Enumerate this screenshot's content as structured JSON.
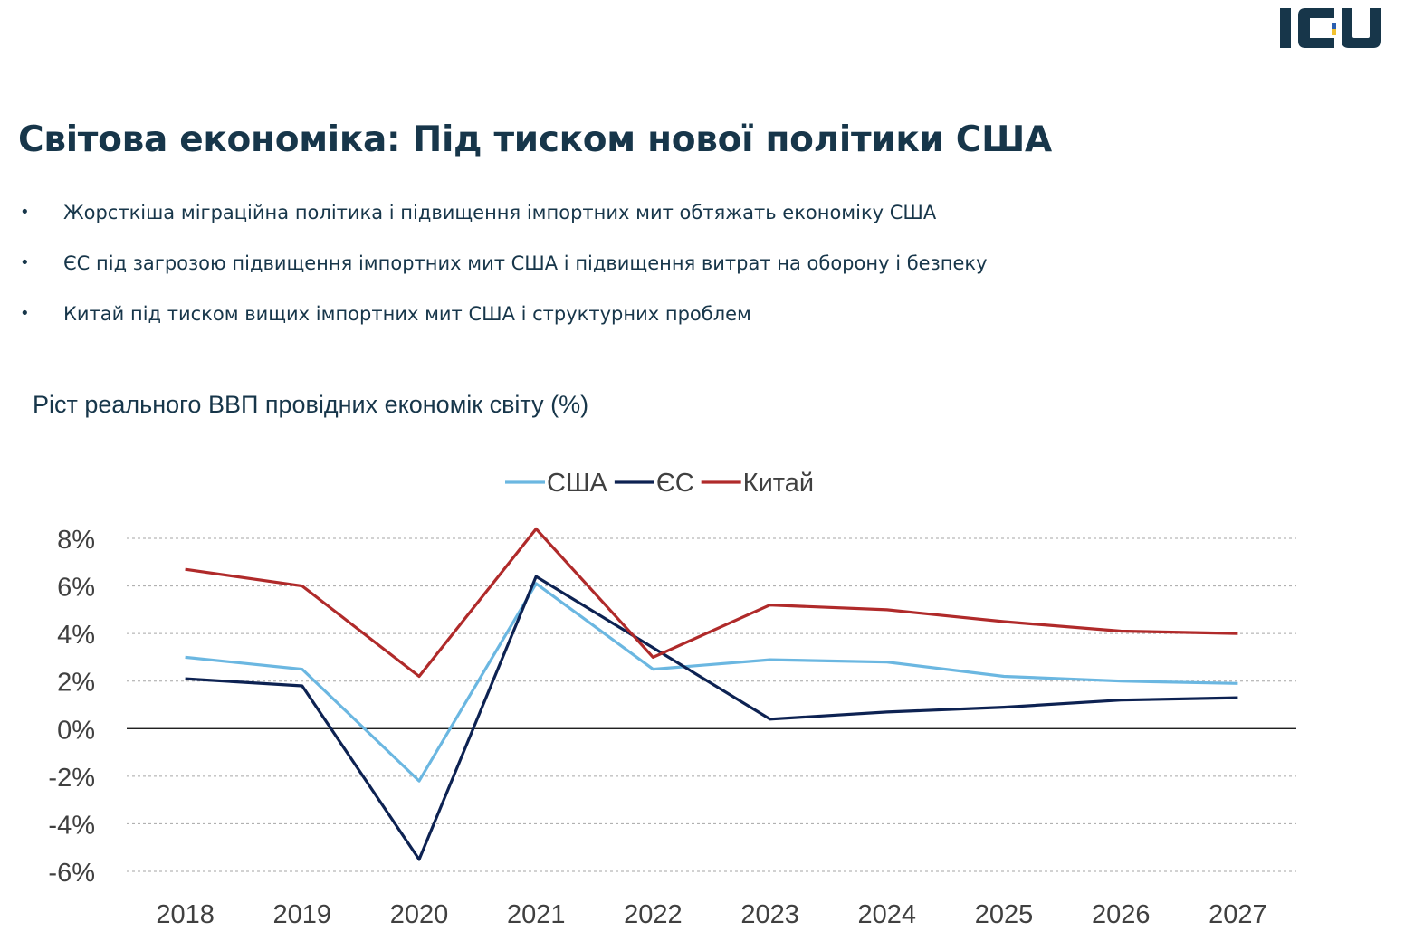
{
  "brand": {
    "logo_text": "ICU",
    "color": "#17364a",
    "accent_blue": "#2b5fb0",
    "accent_yellow": "#f2c230"
  },
  "title": "Світова економіка: Під тиском нової політики США",
  "bullets": [
    "Жорсткіша міграційна політика і підвищення імпортних мит обтяжать економіку США",
    "ЄС під загрозою підвищення імпортних мит США і підвищення витрат на оборону і безпеку",
    "Китай під тиском вищих імпортних мит США  і структурних проблем"
  ],
  "bullet_symbol": "•",
  "chart_data": {
    "type": "line",
    "title": "Ріст реального ВВП провідних економік світу (%)",
    "x": [
      "2018",
      "2019",
      "2020",
      "2021",
      "2022",
      "2023",
      "2024",
      "2025",
      "2026",
      "2027"
    ],
    "series": [
      {
        "name": "США",
        "color": "#6bb7e1",
        "values": [
          3.0,
          2.5,
          -2.2,
          6.1,
          2.5,
          2.9,
          2.8,
          2.2,
          2.0,
          1.9
        ]
      },
      {
        "name": "ЄС",
        "color": "#0d2252",
        "values": [
          2.1,
          1.8,
          -5.5,
          6.4,
          3.4,
          0.4,
          0.7,
          0.9,
          1.2,
          1.3
        ]
      },
      {
        "name": "Китай",
        "color": "#b02a2a",
        "values": [
          6.7,
          6.0,
          2.2,
          8.4,
          3.0,
          5.2,
          5.0,
          4.5,
          4.1,
          4.0
        ]
      }
    ],
    "ylim": [
      -6,
      8
    ],
    "yticks": [
      8,
      6,
      4,
      2,
      0,
      -2,
      -4,
      -6
    ],
    "ytick_labels": [
      "8%",
      "6%",
      "4%",
      "2%",
      "0%",
      "-2%",
      "-4%",
      "-6%"
    ],
    "grid": true,
    "legend_position": "top-center",
    "xlabel": "",
    "ylabel": ""
  }
}
